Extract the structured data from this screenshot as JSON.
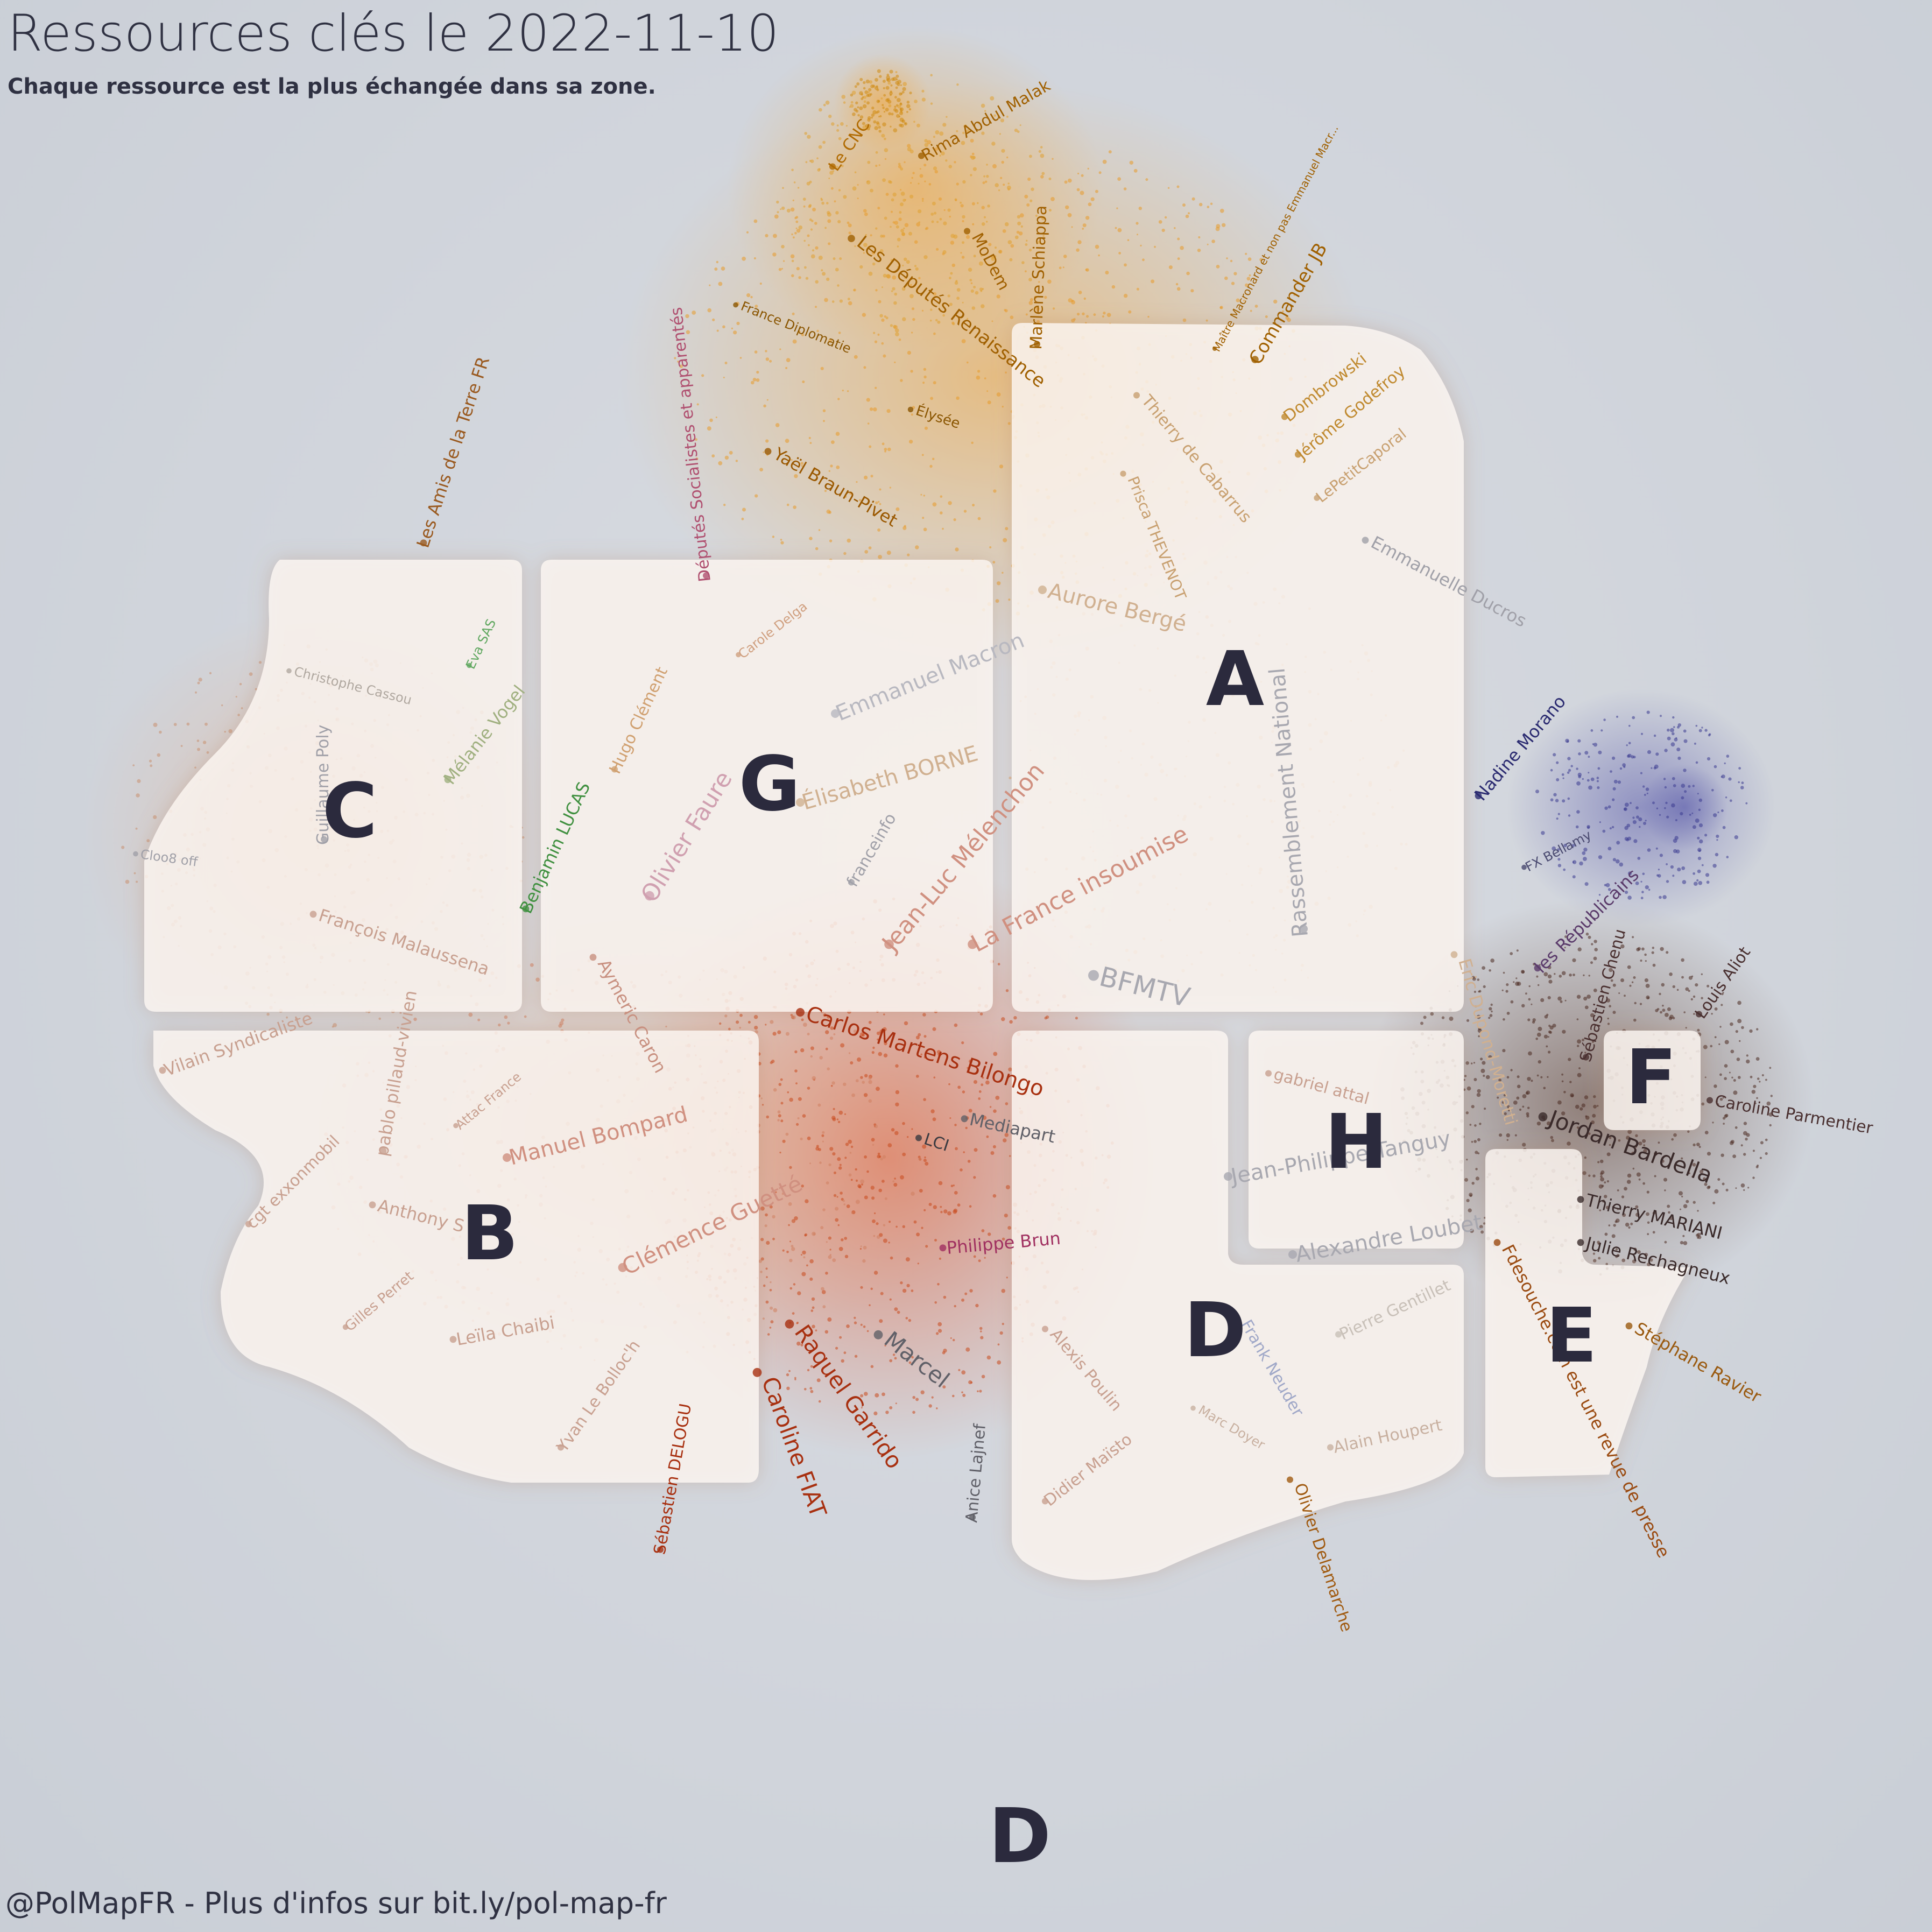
{
  "header": {
    "title": "Ressources clés le 2022-11-10",
    "subtitle": "Chaque ressource est la plus échangée dans sa zone."
  },
  "footer": {
    "text": "@PolMapFR - Plus d'infos sur bit.ly/pol-map-fr"
  },
  "colors": {
    "background": "#d2d6de",
    "panel": "#fdf7f2",
    "zone_letter": "#2b2a3d",
    "orange": "#e8a030",
    "red": "#c43a10",
    "brown": "#5a3a2a",
    "navy": "#3a3a8a"
  },
  "zones": [
    {
      "letter": "A"
    },
    {
      "letter": "B"
    },
    {
      "letter": "C"
    },
    {
      "letter": "D"
    },
    {
      "letter": "E"
    },
    {
      "letter": "F"
    },
    {
      "letter": "G"
    },
    {
      "letter": "H"
    },
    {
      "letter": "D"
    }
  ],
  "labels": [
    {
      "text": "Le CNC",
      "color": "#b06a00"
    },
    {
      "text": "Rima Abdul Malak",
      "color": "#a06000"
    },
    {
      "text": "Maître Macronard et non pas Emmanuel Macr...",
      "color": "#a06000"
    },
    {
      "text": "MoDem",
      "color": "#a06000"
    },
    {
      "text": "Marlène Schiappa",
      "color": "#a06000"
    },
    {
      "text": "Les Députés Renaissance",
      "color": "#a06000"
    },
    {
      "text": "Commander JB",
      "color": "#a06000"
    },
    {
      "text": "France Diplomatie",
      "color": "#8a5500"
    },
    {
      "text": "Dombrowski",
      "color": "#c08a30"
    },
    {
      "text": "Jérôme Godefroy",
      "color": "#c08a30"
    },
    {
      "text": "Élysée",
      "color": "#8a5500"
    },
    {
      "text": "Thierry de Cabarrus",
      "color": "#c8a070"
    },
    {
      "text": "LePetitCaporal",
      "color": "#c8a070"
    },
    {
      "text": "Yaël Braun-Pivet",
      "color": "#9a5800"
    },
    {
      "text": "Prisca THEVENOT",
      "color": "#c8a070"
    },
    {
      "text": "Députés Socialistes et apparentés",
      "color": "#b05070"
    },
    {
      "text": "Emmanuelle Ducros",
      "color": "#a0a0a8"
    },
    {
      "text": "Les Amis de la Terre FR",
      "color": "#9a5a20"
    },
    {
      "text": "Aurore Bergé",
      "color": "#d0b090"
    },
    {
      "text": "Carole Delga",
      "color": "#d0a080"
    },
    {
      "text": "Eva SAS",
      "color": "#60a860"
    },
    {
      "text": "Emmanuel Macron",
      "color": "#b8b8c0"
    },
    {
      "text": "Christophe Cassou",
      "color": "#b0a8a0"
    },
    {
      "text": "Hugo Clément",
      "color": "#d0a070"
    },
    {
      "text": "Nadine Morano",
      "color": "#2a2a70"
    },
    {
      "text": "Mélanie Vogel",
      "color": "#a0b080"
    },
    {
      "text": "Élisabeth BORNE",
      "color": "#d0b090"
    },
    {
      "text": "Rassemblement National",
      "color": "#a8a8b0"
    },
    {
      "text": "Eric Dupond-Moretti",
      "color": "#d0b090"
    },
    {
      "text": "FX Bellamy",
      "color": "#4a4a70"
    },
    {
      "text": "Olivier Faure",
      "color": "#d0a0b0"
    },
    {
      "text": "Guillaume Poly",
      "color": "#a0a0a8"
    },
    {
      "text": "Benjamin LUCAS",
      "color": "#409040"
    },
    {
      "text": "franceinfo",
      "color": "#a0a0a8"
    },
    {
      "text": "Jean-Luc Mélenchon",
      "color": "#d09080"
    },
    {
      "text": "La France insoumise",
      "color": "#d09080"
    },
    {
      "text": "les Républicains",
      "color": "#5a3a6a"
    },
    {
      "text": "Cloo8 off",
      "color": "#a0a0a8"
    },
    {
      "text": "François Malaussena",
      "color": "#c8a090"
    },
    {
      "text": "Aymeric Caron",
      "color": "#c89080"
    },
    {
      "text": "BFMTV",
      "color": "#a8a8b0"
    },
    {
      "text": "Sébastien Chenu",
      "color": "#4a3030"
    },
    {
      "text": "Louis Aliot",
      "color": "#4a3030"
    },
    {
      "text": "Vilain Syndicaliste",
      "color": "#c8a090"
    },
    {
      "text": "pablo pillaud-vivien",
      "color": "#c8a090"
    },
    {
      "text": "Carlos Martens Bilongo",
      "color": "#a83010"
    },
    {
      "text": "Caroline Parmentier",
      "color": "#4a3030"
    },
    {
      "text": "Attac France",
      "color": "#c8a090"
    },
    {
      "text": "gabriel attal",
      "color": "#c8a090"
    },
    {
      "text": "Jordan Bardella",
      "color": "#3a2a2a"
    },
    {
      "text": "Mediapart",
      "color": "#606068"
    },
    {
      "text": "Manuel Bompard",
      "color": "#d09080"
    },
    {
      "text": "LCI",
      "color": "#3a3a40"
    },
    {
      "text": "cgt exxonmobil",
      "color": "#c8a090"
    },
    {
      "text": "Jean-Philippe Tanguy",
      "color": "#a8a8b0"
    },
    {
      "text": "Anthony S",
      "color": "#c8a090"
    },
    {
      "text": "Thierry MARIANI",
      "color": "#3a2a2a"
    },
    {
      "text": "Clémence Guetté",
      "color": "#d09080"
    },
    {
      "text": "Julie Rechagneux",
      "color": "#3a2a2a"
    },
    {
      "text": "Alexandre Loubet",
      "color": "#a8a8b0"
    },
    {
      "text": "Philippe Brun",
      "color": "#a03060"
    },
    {
      "text": "Gilles Perret",
      "color": "#c8a090"
    },
    {
      "text": "Stéphane Ravier",
      "color": "#9a5a10"
    },
    {
      "text": "Leïla Chaibi",
      "color": "#c8a090"
    },
    {
      "text": "Marcel",
      "color": "#606068"
    },
    {
      "text": "Alexis Poulin",
      "color": "#c8a090"
    },
    {
      "text": "Raquel Garrido",
      "color": "#a83010"
    },
    {
      "text": "Frank Neuder",
      "color": "#a0a8c8"
    },
    {
      "text": "Pierre Gentillet",
      "color": "#c8c0b8"
    },
    {
      "text": "Fdesouche.com est une revue de presse",
      "color": "#9a4a10"
    },
    {
      "text": "Yvan Le Bolloc'h",
      "color": "#c8a090"
    },
    {
      "text": "Caroline FIAT",
      "color": "#a83010"
    },
    {
      "text": "Marc Doyer",
      "color": "#c8b0a0"
    },
    {
      "text": "Alain Houpert",
      "color": "#c8b0a0"
    },
    {
      "text": "Sébastien DELOGU",
      "color": "#a83010"
    },
    {
      "text": "Anice Lajnef",
      "color": "#606068"
    },
    {
      "text": "Didier Maïsto",
      "color": "#c8a090"
    },
    {
      "text": "Olivier Delamarche",
      "color": "#a05a10"
    }
  ]
}
